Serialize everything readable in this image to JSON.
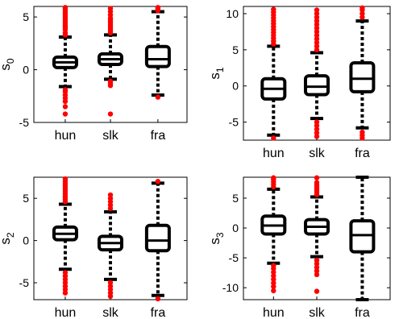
{
  "chart_data": [
    {
      "type": "box",
      "ylabel": "s",
      "ylabel_sub": "0",
      "categories": [
        "hun",
        "slk",
        "fra"
      ],
      "ylim": [
        -5,
        6
      ],
      "yticks": [
        -5,
        0,
        5
      ],
      "grid": false,
      "boxes": [
        {
          "name": "hun",
          "whisker_low": -1.6,
          "q1": 0.2,
          "median": 0.7,
          "q3": 1.2,
          "whisker_high": 3.1,
          "outliers": [
            -4.2,
            -3.5,
            -3.0,
            -2.7,
            -2.4,
            -2.1,
            -1.9,
            3.3,
            3.5,
            3.8,
            4.0,
            4.2,
            4.4,
            4.6,
            4.8,
            5.0,
            5.2,
            5.4,
            5.6,
            5.8,
            5.9
          ]
        },
        {
          "name": "slk",
          "whisker_low": -0.9,
          "q1": 0.5,
          "median": 1.0,
          "q3": 1.5,
          "whisker_high": 3.3,
          "outliers": [
            -4.2,
            -1.5,
            -1.3,
            -1.1,
            3.5,
            3.7,
            3.9,
            4.1,
            4.3,
            4.5,
            4.7,
            4.9,
            5.2,
            5.5,
            5.8
          ]
        },
        {
          "name": "fra",
          "whisker_low": -2.4,
          "q1": 0.3,
          "median": 1.0,
          "q3": 2.2,
          "whisker_high": 5.5,
          "outliers": [
            -2.6,
            5.6,
            5.7,
            5.8,
            5.9
          ]
        }
      ]
    },
    {
      "type": "box",
      "ylabel": "s",
      "ylabel_sub": "1",
      "categories": [
        "hun",
        "slk",
        "fra"
      ],
      "ylim": [
        -7.5,
        11
      ],
      "yticks": [
        -5,
        0,
        5,
        10
      ],
      "grid": false,
      "boxes": [
        {
          "name": "hun",
          "whisker_low": -6.8,
          "q1": -1.8,
          "median": -0.4,
          "q3": 1.0,
          "whisker_high": 5.5,
          "outliers": [
            -7.2,
            5.8,
            6.2,
            6.6,
            7.0,
            7.4,
            7.8,
            8.2,
            8.6,
            9.0,
            9.4,
            9.8,
            10.2,
            10.6
          ]
        },
        {
          "name": "slk",
          "whisker_low": -4.5,
          "q1": -1.2,
          "median": -0.1,
          "q3": 1.4,
          "whisker_high": 4.6,
          "outliers": [
            -7.0,
            -6.5,
            -6.0,
            -5.5,
            -5.0,
            5.0,
            5.5,
            6.0,
            6.5,
            7.0,
            7.5,
            8.0,
            8.5,
            9.0,
            9.5,
            10.0,
            10.5
          ]
        },
        {
          "name": "fra",
          "whisker_low": -5.8,
          "q1": -0.8,
          "median": 1.0,
          "q3": 3.2,
          "whisker_high": 9.0,
          "outliers": [
            -7.2,
            -6.8,
            -6.4,
            9.5,
            10.0,
            10.5,
            10.8
          ]
        }
      ]
    },
    {
      "type": "box",
      "ylabel": "s",
      "ylabel_sub": "2",
      "categories": [
        "hun",
        "slk",
        "fra"
      ],
      "ylim": [
        -7,
        7.5
      ],
      "yticks": [
        -5,
        0,
        5
      ],
      "grid": false,
      "boxes": [
        {
          "name": "hun",
          "whisker_low": -3.4,
          "q1": 0.1,
          "median": 0.8,
          "q3": 1.6,
          "whisker_high": 4.3,
          "outliers": [
            -6.2,
            -5.8,
            -5.4,
            -5.0,
            -4.6,
            -4.2,
            -3.8,
            4.6,
            4.9,
            5.2,
            5.5,
            5.8,
            6.1,
            6.4,
            6.7,
            7.0,
            7.3
          ]
        },
        {
          "name": "slk",
          "whisker_low": -4.6,
          "q1": -1.1,
          "median": -0.3,
          "q3": 0.5,
          "whisker_high": 3.4,
          "outliers": [
            -6.6,
            -6.2,
            -5.8,
            -5.4,
            -5.0,
            3.8,
            4.2,
            4.6,
            5.0,
            5.4
          ]
        },
        {
          "name": "fra",
          "whisker_low": -6.5,
          "q1": -1.2,
          "median": 0.0,
          "q3": 1.8,
          "whisker_high": 6.8,
          "outliers": [
            -6.9,
            7.0
          ]
        }
      ]
    },
    {
      "type": "box",
      "ylabel": "s",
      "ylabel_sub": "3",
      "categories": [
        "hun",
        "slk",
        "fra"
      ],
      "ylim": [
        -12,
        8.5
      ],
      "yticks": [
        -10,
        -5,
        0,
        5
      ],
      "grid": false,
      "boxes": [
        {
          "name": "hun",
          "whisker_low": -5.9,
          "q1": -1.0,
          "median": 0.4,
          "q3": 2.0,
          "whisker_high": 6.5,
          "outliers": [
            -10.5,
            -9.8,
            -9.2,
            -8.6,
            -8.0,
            -7.4,
            -6.8,
            -6.3,
            6.9,
            7.3,
            7.7,
            8.1,
            8.4
          ]
        },
        {
          "name": "slk",
          "whisker_low": -4.8,
          "q1": -1.0,
          "median": 0.2,
          "q3": 1.4,
          "whisker_high": 5.2,
          "outliers": [
            -10.6,
            -7.8,
            -7.2,
            -6.6,
            -6.0,
            -5.4,
            5.6,
            6.0,
            6.4,
            6.8,
            7.2,
            7.6,
            8.4
          ]
        },
        {
          "name": "fra",
          "whisker_low": -12.0,
          "q1": -4.0,
          "median": -1.2,
          "q3": 1.2,
          "whisker_high": 8.5,
          "outliers": []
        }
      ]
    }
  ]
}
